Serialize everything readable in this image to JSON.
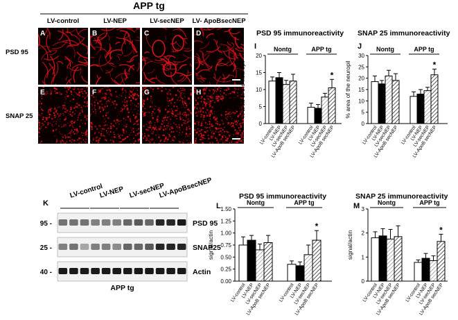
{
  "figure": {
    "header": "APP tg",
    "columns": [
      "LV-control",
      "LV-NEP",
      "LV-secNEP",
      "LV- ApoBsecNEP"
    ],
    "rows": [
      "PSD 95",
      "SNAP 25"
    ],
    "panel_letters": [
      "A",
      "B",
      "C",
      "D",
      "E",
      "F",
      "G",
      "H"
    ],
    "micrograph_color": "#e0141a"
  },
  "western_blot": {
    "panel_letter": "K",
    "groups": [
      "LV-control",
      "LV-NEP",
      "LV-secNEP",
      "LV-ApoBsecNEP"
    ],
    "markers": [
      "95 -",
      "25 -",
      "40 -"
    ],
    "bands": [
      "PSD 95",
      "SNAP25",
      "Actin"
    ],
    "footer": "APP tg",
    "band_intensity": {
      "PSD 95": [
        0.55,
        0.55,
        0.55,
        0.5,
        0.5,
        0.5,
        0.6,
        0.65,
        0.6,
        0.85,
        0.85,
        0.9
      ],
      "SNAP25": [
        0.5,
        0.55,
        0.35,
        0.5,
        0.5,
        0.45,
        0.6,
        0.6,
        0.65,
        0.85,
        0.85,
        0.85
      ],
      "Actin": [
        0.9,
        0.9,
        0.9,
        0.9,
        0.9,
        0.9,
        0.9,
        0.9,
        0.9,
        0.9,
        0.9,
        0.9
      ]
    }
  },
  "chart_data": [
    {
      "panel": "I",
      "type": "bar",
      "title": "PSD 95 immunoreactivity",
      "ylabel": "% area of the neuropil",
      "ylim": [
        0,
        20
      ],
      "yticks": [
        "0",
        "5",
        "10",
        "15",
        "20"
      ],
      "groups": [
        "Nontg",
        "APP tg"
      ],
      "categories": [
        "LV-control",
        "LV-NEP",
        "LV-secNEP",
        "LV-ApoB secNEP"
      ],
      "series": [
        {
          "values": [
            12.5,
            13.5,
            11.5,
            12.5
          ],
          "errors": [
            1.2,
            1.5,
            1.2,
            2.0
          ]
        },
        {
          "values": [
            4.8,
            4.5,
            7.8,
            10.5
          ],
          "errors": [
            1.2,
            1.1,
            1.1,
            2.5
          ]
        }
      ],
      "significance": {
        "group": 1,
        "index": 3,
        "label": "*"
      }
    },
    {
      "panel": "J",
      "type": "bar",
      "title": "SNAP 25 immunoreactivity",
      "ylabel": "% area of the neuropil",
      "ylim": [
        0,
        30
      ],
      "yticks": [
        "0",
        "5",
        "10",
        "15",
        "20",
        "25",
        "30"
      ],
      "groups": [
        "Nontg",
        "APP tg"
      ],
      "categories": [
        "LV-control",
        "LV-NEP",
        "LV-secNEP",
        "LV-ApoB secNEP"
      ],
      "series": [
        {
          "values": [
            18.5,
            17.5,
            21.0,
            19.0
          ],
          "errors": [
            2.5,
            1.5,
            2.5,
            3.0
          ]
        },
        {
          "values": [
            12.0,
            13.0,
            14.5,
            21.5
          ],
          "errors": [
            2.0,
            2.0,
            1.5,
            2.5
          ]
        }
      ],
      "significance": {
        "group": 1,
        "index": 3,
        "label": "*"
      }
    },
    {
      "panel": "L",
      "type": "bar",
      "title": "PSD 95 immunoreactivity",
      "ylabel": "signal/actin",
      "ylim": [
        0,
        1.5
      ],
      "yticks": [
        "0.00",
        "0.25",
        "0.50",
        "0.75",
        "1.00",
        "1.25",
        "1.50"
      ],
      "groups": [
        "Nontg",
        "APP tg"
      ],
      "categories": [
        "LV-control",
        "LV-NEP",
        "LV-secNEP",
        "LV-ApoB secNEP"
      ],
      "series": [
        {
          "values": [
            0.75,
            0.85,
            0.65,
            0.8
          ],
          "errors": [
            0.17,
            0.1,
            0.12,
            0.15
          ]
        },
        {
          "values": [
            0.35,
            0.32,
            0.55,
            0.85
          ],
          "errors": [
            0.07,
            0.08,
            0.2,
            0.2
          ]
        }
      ],
      "significance": {
        "group": 1,
        "index": 3,
        "label": "*"
      }
    },
    {
      "panel": "M",
      "type": "bar",
      "title": "SNAP 25 immunoreactivity",
      "ylabel": "signal/actin",
      "ylim": [
        0,
        3
      ],
      "yticks": [
        "0",
        "1",
        "2",
        "3"
      ],
      "groups": [
        "Nontg",
        "APP tg"
      ],
      "categories": [
        "LV-control",
        "LV-NEP",
        "LV-secNEP",
        "LV-ApoB secNEP"
      ],
      "series": [
        {
          "values": [
            1.8,
            1.88,
            1.75,
            1.85
          ],
          "errors": [
            0.25,
            0.3,
            0.4,
            0.45
          ]
        },
        {
          "values": [
            0.78,
            0.95,
            0.85,
            1.65
          ],
          "errors": [
            0.1,
            0.2,
            0.2,
            0.3
          ]
        }
      ],
      "significance": {
        "group": 1,
        "index": 3,
        "label": "*"
      }
    }
  ]
}
